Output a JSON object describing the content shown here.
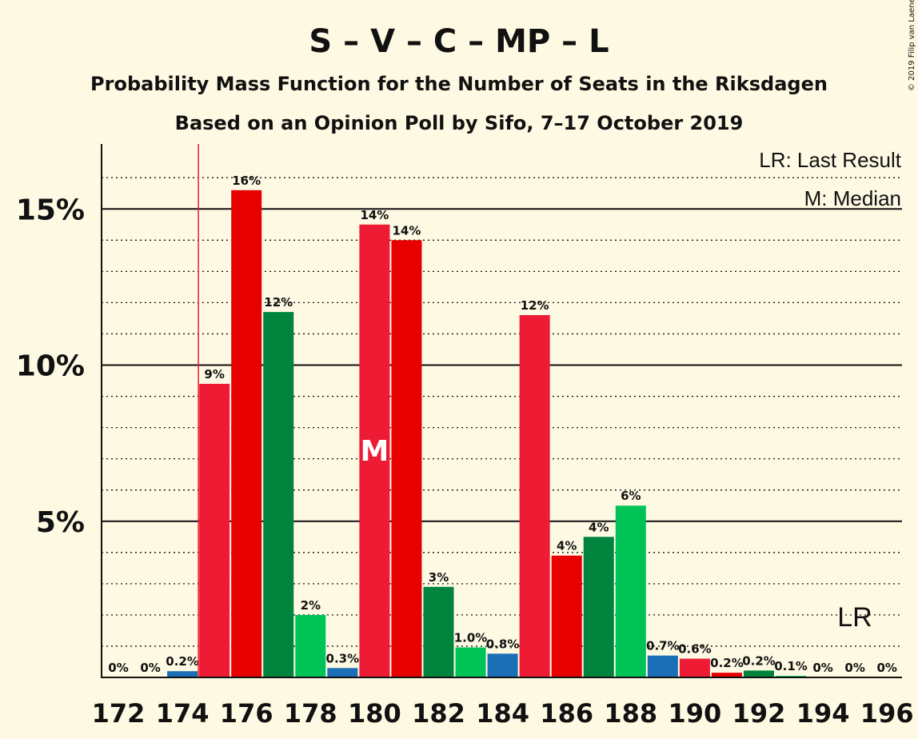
{
  "chart_data": {
    "type": "bar",
    "title": "S – V – C – MP – L",
    "subtitle_1": "Probability Mass Function for the Number of Seats in the Riksdagen",
    "subtitle_2": "Based on an Opinion Poll by Sifo, 7–17 October 2019",
    "copyright": "© 2019 Filip van Laenen",
    "legend": {
      "last_result": "LR: Last Result",
      "median": "M: Median",
      "position": "top-right"
    },
    "x": [
      172,
      173,
      174,
      175,
      176,
      177,
      178,
      179,
      180,
      181,
      182,
      183,
      184,
      185,
      186,
      187,
      188,
      189,
      190,
      191,
      192,
      193,
      194,
      195,
      196
    ],
    "values": [
      0,
      0,
      0.2,
      9.4,
      15.6,
      11.7,
      2.0,
      0.3,
      14.5,
      14.0,
      2.9,
      0.96,
      0.76,
      11.6,
      3.9,
      4.5,
      5.5,
      0.7,
      0.6,
      0.15,
      0.22,
      0.05,
      0,
      0,
      0
    ],
    "labels": [
      "0%",
      "0%",
      "0.2%",
      "9%",
      "16%",
      "12%",
      "2%",
      "0.3%",
      "14%",
      "14%",
      "3%",
      "1.0%",
      "0.8%",
      "12%",
      "4%",
      "4%",
      "6%",
      "0.7%",
      "0.6%",
      "0.2%",
      "0.2%",
      "0.1%",
      "0%",
      "0%",
      "0%"
    ],
    "colors": [
      "#1A6FB5",
      "#1A6FB5",
      "#1A6FB5",
      "#ED1B34",
      "#E60000",
      "#00843D",
      "#00C358",
      "#1A6FB5",
      "#ED1B34",
      "#E60000",
      "#00843D",
      "#00C358",
      "#1A6FB5",
      "#ED1B34",
      "#E60000",
      "#00843D",
      "#00C358",
      "#1A6FB5",
      "#ED1B34",
      "#E60000",
      "#00843D",
      "#00C358",
      "#1A6FB5",
      "#ED1B34",
      "#E60000"
    ],
    "x_ticks": [
      172,
      174,
      176,
      178,
      180,
      182,
      184,
      186,
      188,
      190,
      192,
      194,
      196
    ],
    "x_tick_labels": [
      "172",
      "174",
      "176",
      "178",
      "180",
      "182",
      "184",
      "186",
      "188",
      "190",
      "192",
      "194",
      "196"
    ],
    "y_ticks": [
      5,
      10,
      15
    ],
    "y_tick_labels": [
      "5%",
      "10%",
      "15%"
    ],
    "ylim": [
      0,
      17
    ],
    "minor_grid_step": 1,
    "last_result": 174.5,
    "last_result_label": "LR",
    "median": 180,
    "median_label": "M"
  }
}
